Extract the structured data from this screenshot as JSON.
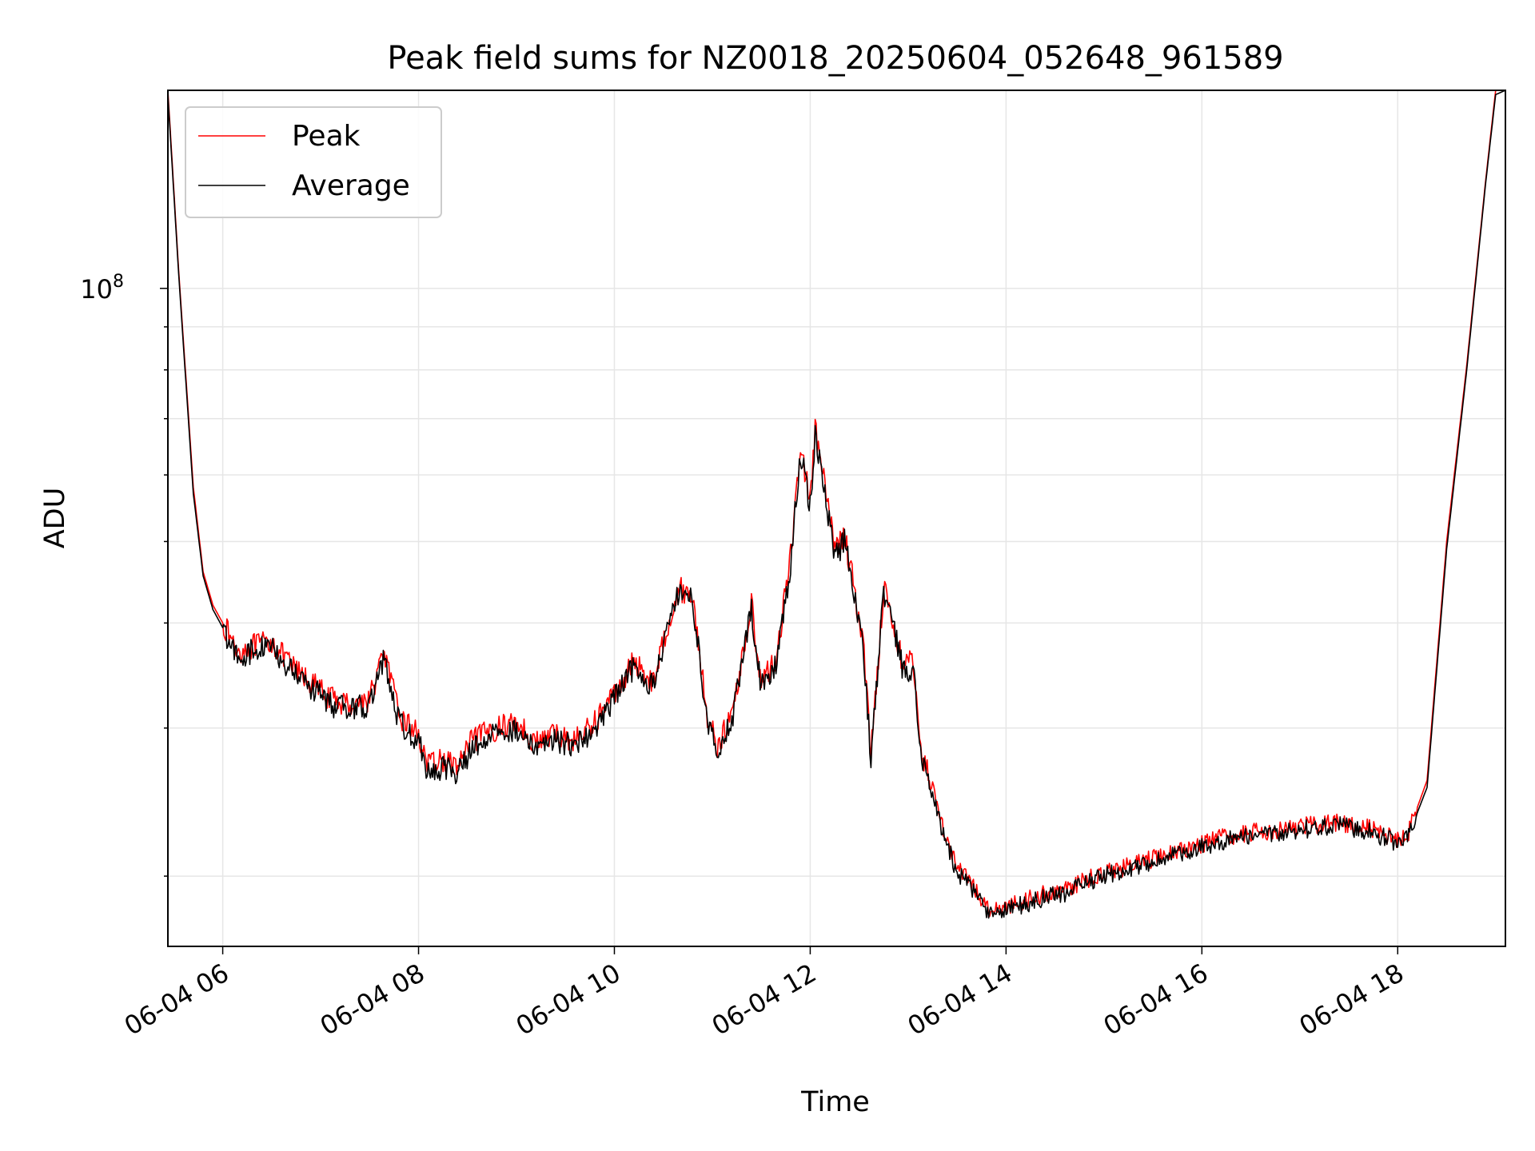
{
  "chart_data": {
    "type": "line",
    "title": "Peak field sums for NZ0018_20250604_052648_961589",
    "xlabel": "Time",
    "ylabel": "ADU",
    "x_tick_labels": [
      "06-04 06",
      "06-04 08",
      "06-04 10",
      "06-04 12",
      "06-04 14",
      "06-04 16",
      "06-04 18"
    ],
    "x_tick_hours": [
      6,
      8,
      10,
      12,
      14,
      16,
      18
    ],
    "xlim_hours": [
      5.44,
      19.1
    ],
    "y_tick_label": {
      "base": "10",
      "exponent": "8"
    },
    "y_scale": "log",
    "ylim": [
      16500000,
      172000000
    ],
    "grid": true,
    "legend_position": "upper left",
    "series": [
      {
        "name": "Peak",
        "color": "#ff0000",
        "x_hours": [
          5.44,
          5.55,
          5.7,
          5.8,
          5.9,
          6.0,
          6.15,
          6.3,
          6.5,
          6.7,
          6.9,
          7.1,
          7.3,
          7.5,
          7.65,
          7.8,
          8.0,
          8.1,
          8.25,
          8.4,
          8.55,
          8.8,
          9.0,
          9.2,
          9.4,
          9.6,
          9.8,
          10.0,
          10.2,
          10.4,
          10.55,
          10.65,
          10.8,
          10.95,
          11.05,
          11.2,
          11.4,
          11.5,
          11.65,
          11.8,
          11.9,
          12.0,
          12.05,
          12.15,
          12.25,
          12.35,
          12.45,
          12.55,
          12.62,
          12.75,
          12.85,
          12.95,
          13.05,
          13.15,
          13.25,
          13.35,
          13.5,
          13.7,
          13.8,
          14.0,
          14.3,
          14.6,
          15.0,
          15.4,
          15.8,
          16.2,
          16.6,
          17.0,
          17.4,
          17.7,
          18.0,
          18.1,
          18.3,
          18.5,
          18.7,
          18.9,
          19.0,
          19.1
        ],
        "y_millions": [
          172,
          105,
          58,
          46,
          42,
          40,
          37,
          37.5,
          38,
          35.5,
          34,
          32.5,
          32,
          32.5,
          37,
          31,
          29.5,
          27,
          27.5,
          27,
          29,
          30,
          30.5,
          28.8,
          29.5,
          29,
          30.5,
          33,
          36,
          34,
          40,
          44,
          43,
          31,
          28.5,
          31,
          42,
          34,
          36,
          48,
          65,
          56,
          68,
          58,
          49,
          51,
          44,
          37,
          28,
          44,
          40,
          35.5,
          36,
          27.5,
          25.5,
          23,
          20.5,
          19.2,
          18.3,
          18.4,
          18.9,
          19.3,
          20.2,
          20.8,
          21.5,
          22.2,
          22.6,
          22.9,
          23.2,
          22.8,
          22.1,
          22.4,
          26,
          50,
          80,
          135,
          172,
          172
        ]
      },
      {
        "name": "Average",
        "color": "#000000",
        "x_hours": [
          5.44,
          5.55,
          5.7,
          5.8,
          5.9,
          6.0,
          6.15,
          6.3,
          6.5,
          6.7,
          6.9,
          7.1,
          7.3,
          7.5,
          7.65,
          7.8,
          8.0,
          8.1,
          8.25,
          8.4,
          8.55,
          8.8,
          9.0,
          9.2,
          9.4,
          9.6,
          9.8,
          10.0,
          10.2,
          10.4,
          10.55,
          10.65,
          10.8,
          10.95,
          11.05,
          11.2,
          11.4,
          11.5,
          11.65,
          11.8,
          11.9,
          12.0,
          12.05,
          12.15,
          12.25,
          12.35,
          12.45,
          12.55,
          12.62,
          12.75,
          12.85,
          12.95,
          13.05,
          13.15,
          13.25,
          13.35,
          13.5,
          13.7,
          13.8,
          14.0,
          14.3,
          14.6,
          15.0,
          15.4,
          15.8,
          16.2,
          16.6,
          17.0,
          17.4,
          17.7,
          18.0,
          18.1,
          18.3,
          18.5,
          18.7,
          18.9,
          19.0,
          19.1
        ],
        "y_millions": [
          170,
          104,
          57,
          45.5,
          41.5,
          39.5,
          36.5,
          37,
          37.5,
          35,
          33.5,
          32,
          31.5,
          32,
          36.5,
          30.5,
          29,
          26.5,
          27,
          26.5,
          28.5,
          29.5,
          30,
          28.3,
          29,
          28.5,
          30,
          32.5,
          35.5,
          33.5,
          39.5,
          43.5,
          42.5,
          30.5,
          28,
          30.5,
          41.5,
          33.5,
          35.5,
          47,
          64,
          55,
          67,
          57,
          48,
          50,
          43.5,
          36.5,
          27.5,
          43.5,
          39.5,
          35,
          35.5,
          27,
          25,
          22.7,
          20.2,
          19,
          18.1,
          18.2,
          18.7,
          19.1,
          20,
          20.6,
          21.3,
          22,
          22.4,
          22.7,
          23,
          22.6,
          21.9,
          22.2,
          25.5,
          49,
          79,
          134,
          170,
          172
        ]
      }
    ]
  }
}
